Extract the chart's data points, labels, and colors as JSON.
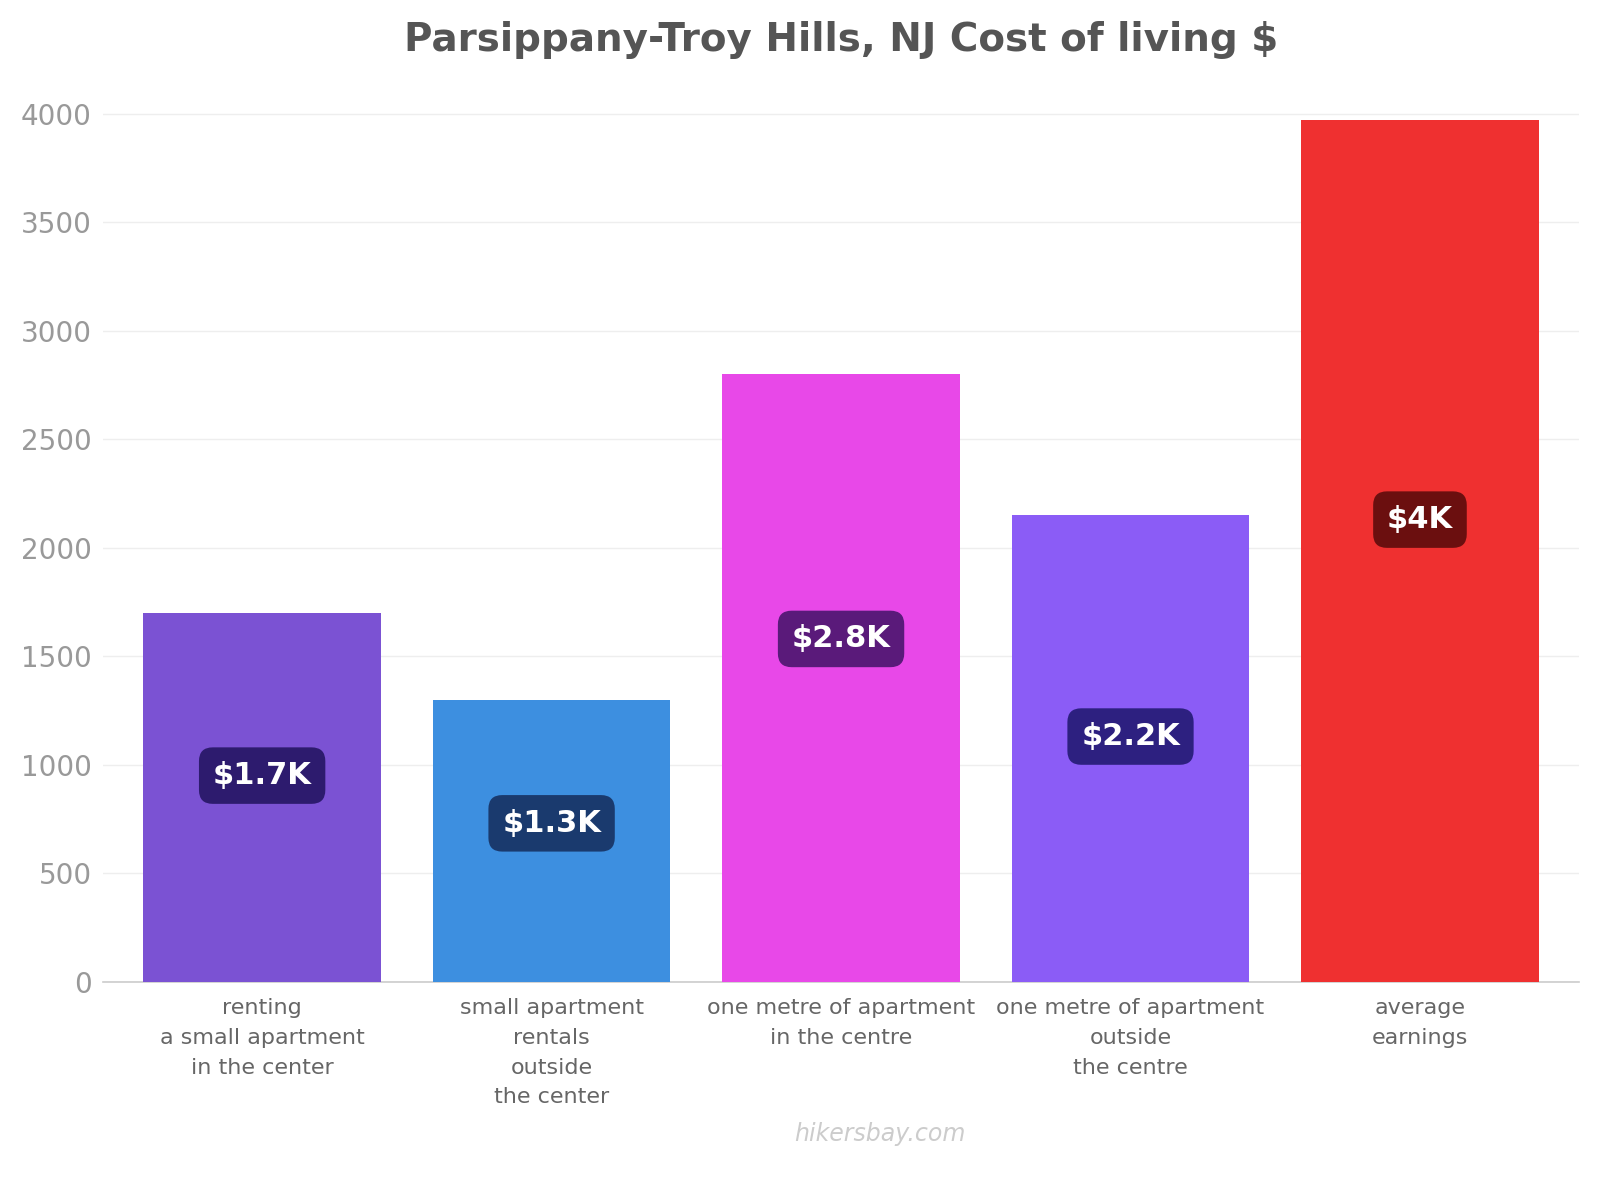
{
  "title": "Parsippany-Troy Hills, NJ Cost of living $",
  "categories": [
    "renting\na small apartment\nin the center",
    "small apartment\nrentals\noutside\nthe center",
    "one metre of apartment\nin the centre",
    "one metre of apartment\noutside\nthe centre",
    "average\nearnings"
  ],
  "values": [
    1700,
    1300,
    2800,
    2150,
    3970
  ],
  "bar_colors": [
    "#7B52D3",
    "#3D8FE0",
    "#E848E8",
    "#8B5CF6",
    "#EF3030"
  ],
  "label_texts": [
    "$1.7K",
    "$1.3K",
    "$2.8K",
    "$2.2K",
    "$4K"
  ],
  "label_bg_colors": [
    "#2D1B6E",
    "#1A3A6E",
    "#5A1A7A",
    "#2D2080",
    "#6B0F0F"
  ],
  "label_positions_y": [
    950,
    730,
    1580,
    1130,
    2130
  ],
  "ylim": [
    0,
    4150
  ],
  "yticks": [
    0,
    500,
    1000,
    1500,
    2000,
    2500,
    3000,
    3500,
    4000
  ],
  "title_fontsize": 28,
  "tick_fontsize": 20,
  "xlabel_fontsize": 16,
  "label_fontsize": 22,
  "watermark": "hikersbay.com",
  "bg_color": "#FFFFFF"
}
